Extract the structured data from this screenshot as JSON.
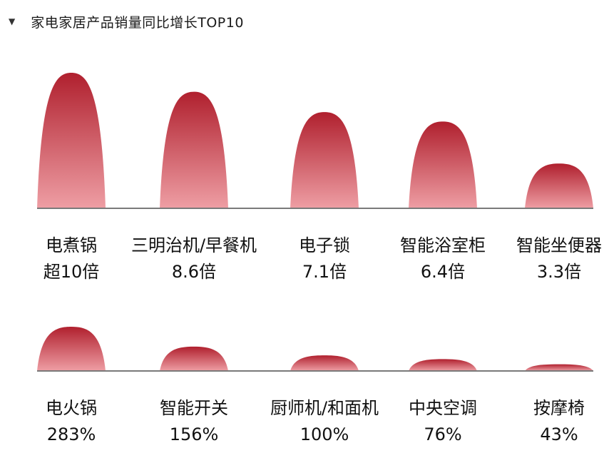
{
  "header": {
    "marker": "▼",
    "title": "家电家居产品销量同比增长TOP10"
  },
  "chart_data": [
    {
      "type": "bar",
      "categories": [
        "电煮锅",
        "三明治机/早餐机",
        "电子锁",
        "智能浴室柜",
        "智能坐便器"
      ],
      "values": [
        10,
        8.6,
        7.1,
        6.4,
        3.3
      ],
      "value_labels": [
        "超10倍",
        "8.6倍",
        "7.1倍",
        "6.4倍",
        "3.3倍"
      ],
      "unit": "倍",
      "grid": false,
      "legend": "none"
    },
    {
      "type": "bar",
      "categories": [
        "电火锅",
        "智能开关",
        "厨师机/和面机",
        "中央空调",
        "按摩椅"
      ],
      "values": [
        283,
        156,
        100,
        76,
        43
      ],
      "value_labels": [
        "283%",
        "156%",
        "100%",
        "76%",
        "43%"
      ],
      "unit": "%",
      "grid": false,
      "legend": "none"
    }
  ],
  "colors": {
    "bar_top": "#b0202e",
    "bar_bottom": "#ee9ea4",
    "baseline": "#7a7a7a"
  }
}
